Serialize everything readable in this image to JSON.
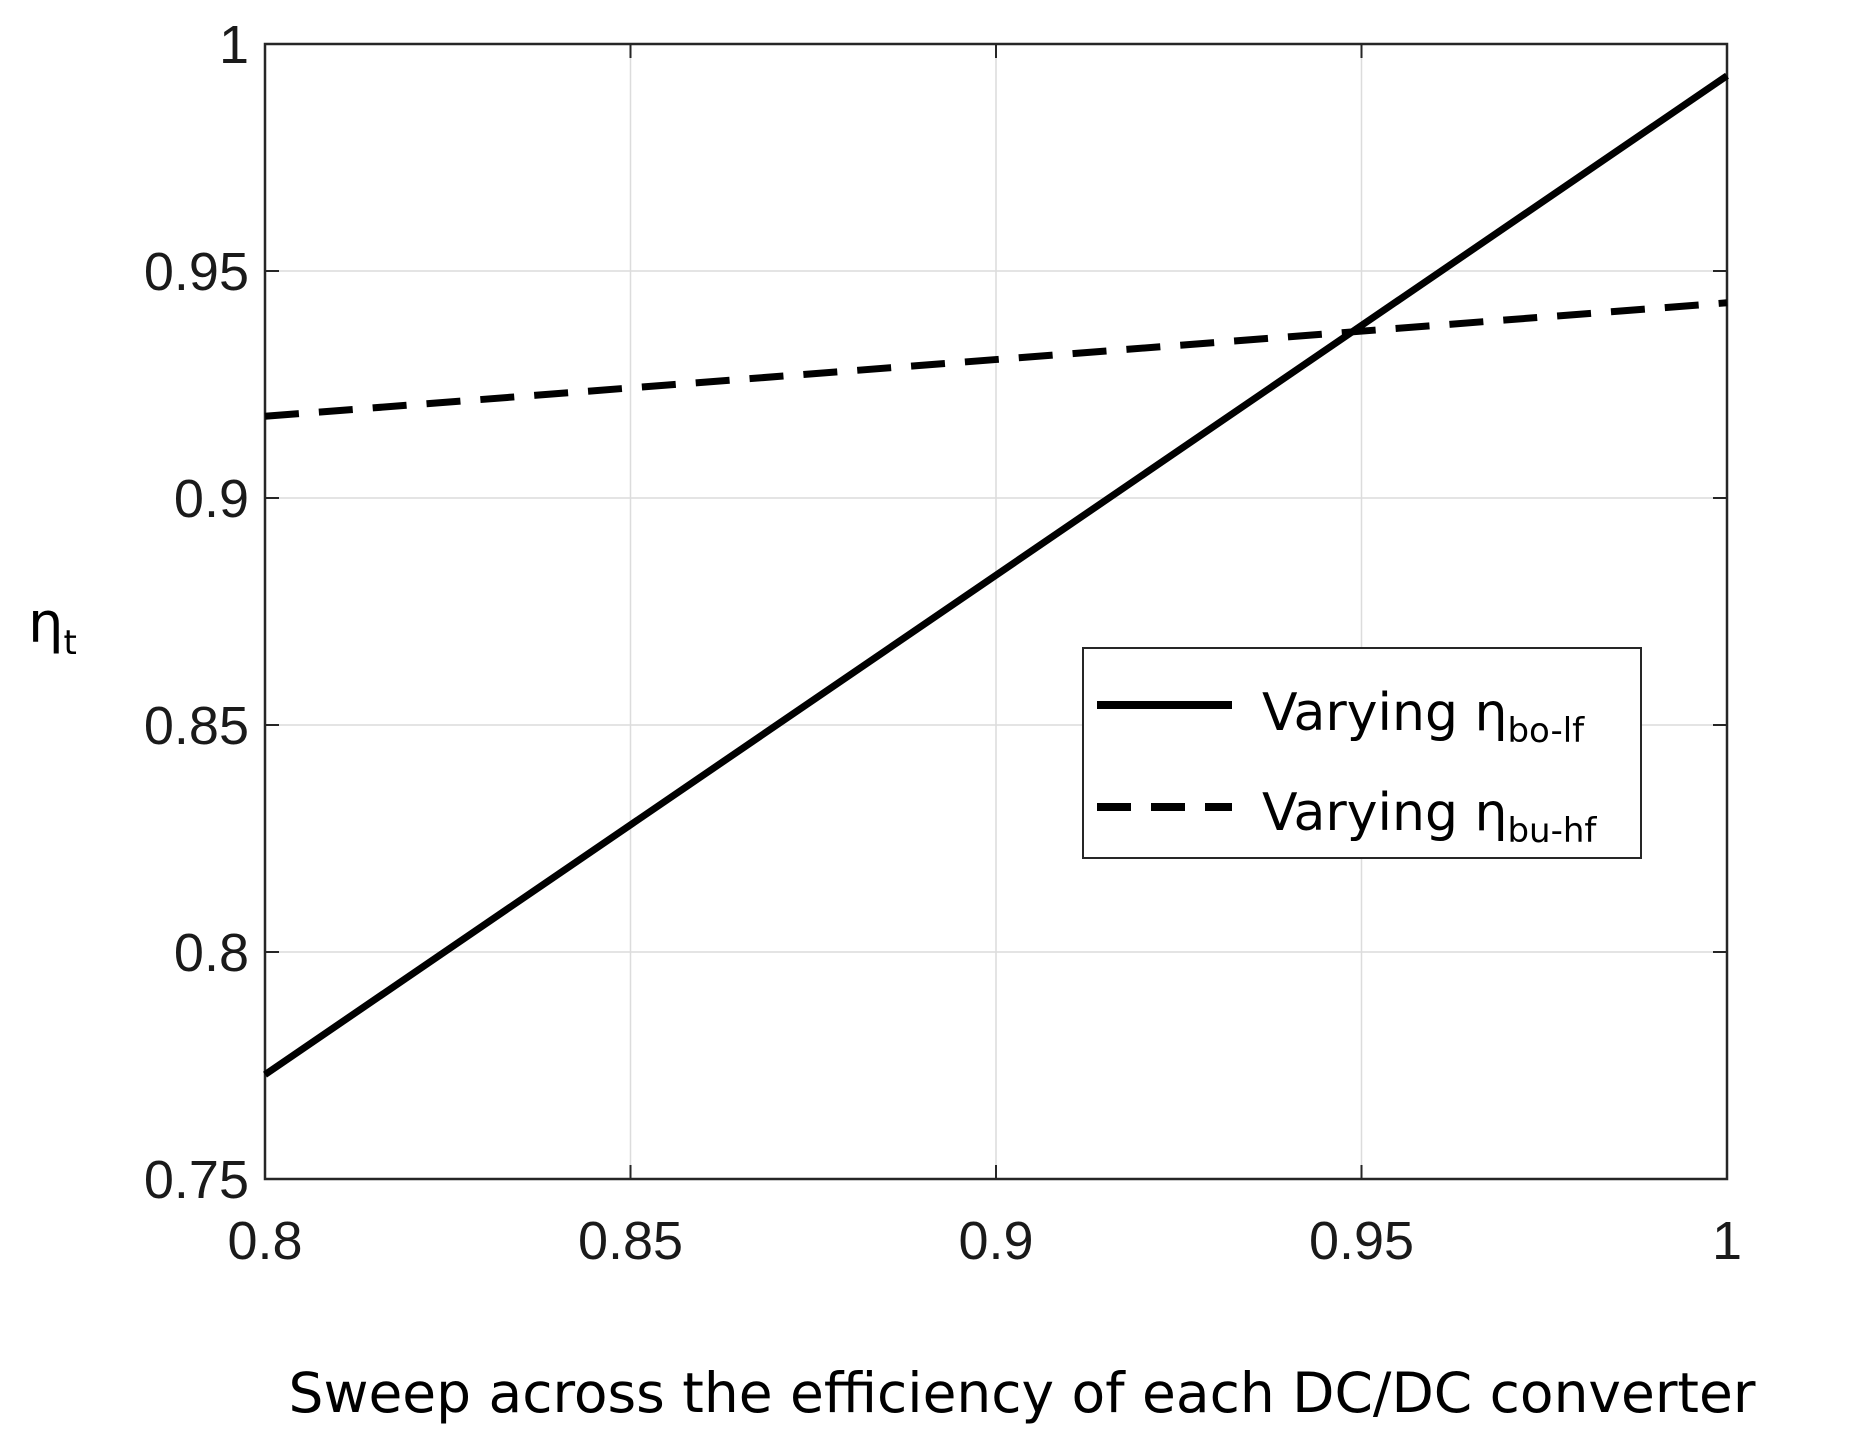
{
  "chart_data": {
    "type": "line",
    "title": "",
    "xlabel": "Sweep across the efficiency of each DC/DC converter",
    "ylabel": {
      "main": "η",
      "sub": "t"
    },
    "xlim": [
      0.8,
      1.0
    ],
    "ylim": [
      0.75,
      1.0
    ],
    "xticks": [
      0.8,
      0.85,
      0.9,
      0.95,
      1.0
    ],
    "xtick_labels": [
      "0.8",
      "0.85",
      "0.9",
      "0.95",
      "1"
    ],
    "yticks": [
      0.75,
      0.8,
      0.85,
      0.9,
      0.95,
      1.0
    ],
    "ytick_labels": [
      "0.75",
      "0.8",
      "0.85",
      "0.9",
      "0.95",
      "1"
    ],
    "grid": true,
    "legend_position": "center-right",
    "series": [
      {
        "name": "Varying ηbo-lf",
        "label_main": "Varying η",
        "label_sub": "bo-lf",
        "style": "solid",
        "color": "#000000",
        "x": [
          0.8,
          1.0
        ],
        "y": [
          0.773,
          0.993
        ]
      },
      {
        "name": "Varying ηbu-hf",
        "label_main": "Varying η",
        "label_sub": "bu-hf",
        "style": "dashed",
        "color": "#000000",
        "x": [
          0.8,
          1.0
        ],
        "y": [
          0.918,
          0.943
        ]
      }
    ]
  }
}
